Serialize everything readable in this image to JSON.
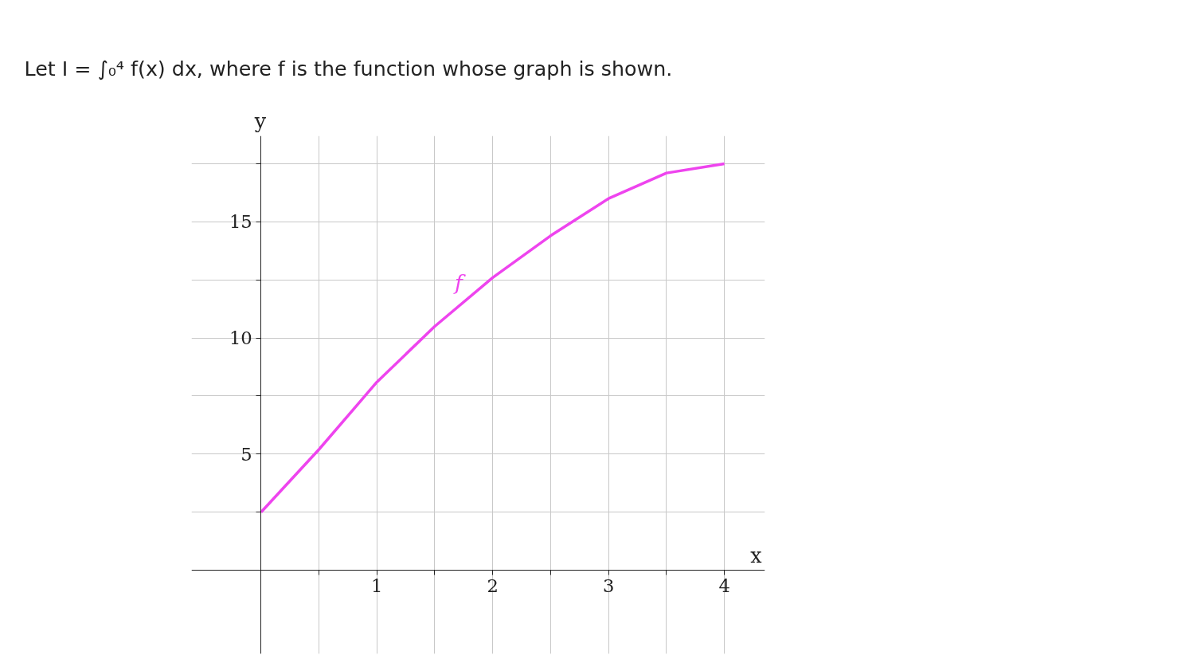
{
  "chart_data": {
    "type": "line",
    "title": "Let I = ∫₀⁴ f(x) dx, where f is the function whose graph is shown.",
    "xlabel": "x",
    "ylabel": "y",
    "x": [
      0,
      0.5,
      1,
      1.5,
      2,
      2.5,
      3,
      3.5,
      4
    ],
    "series": [
      {
        "name": "f",
        "color": "#ee44ee",
        "values": [
          2.5,
          5.2,
          8.1,
          10.5,
          12.6,
          14.4,
          16.0,
          17.1,
          17.5
        ]
      }
    ],
    "xlim": [
      -0.6,
      4.35
    ],
    "ylim": [
      -3.6,
      18.7
    ],
    "xticks": [
      {
        "value": 0.5,
        "label": null
      },
      1,
      {
        "value": 1.5,
        "label": null
      },
      2,
      {
        "value": 2.5,
        "label": null
      },
      3,
      {
        "value": 3.5,
        "label": null
      },
      4
    ],
    "yticks": [
      {
        "value": 2.5,
        "label": null
      },
      5,
      {
        "value": 7.5,
        "label": null
      },
      10,
      {
        "value": 12.5,
        "label": null
      },
      15,
      {
        "value": 17.5,
        "label": null
      }
    ],
    "grid": true,
    "marker": "none",
    "line_style": "solid"
  }
}
